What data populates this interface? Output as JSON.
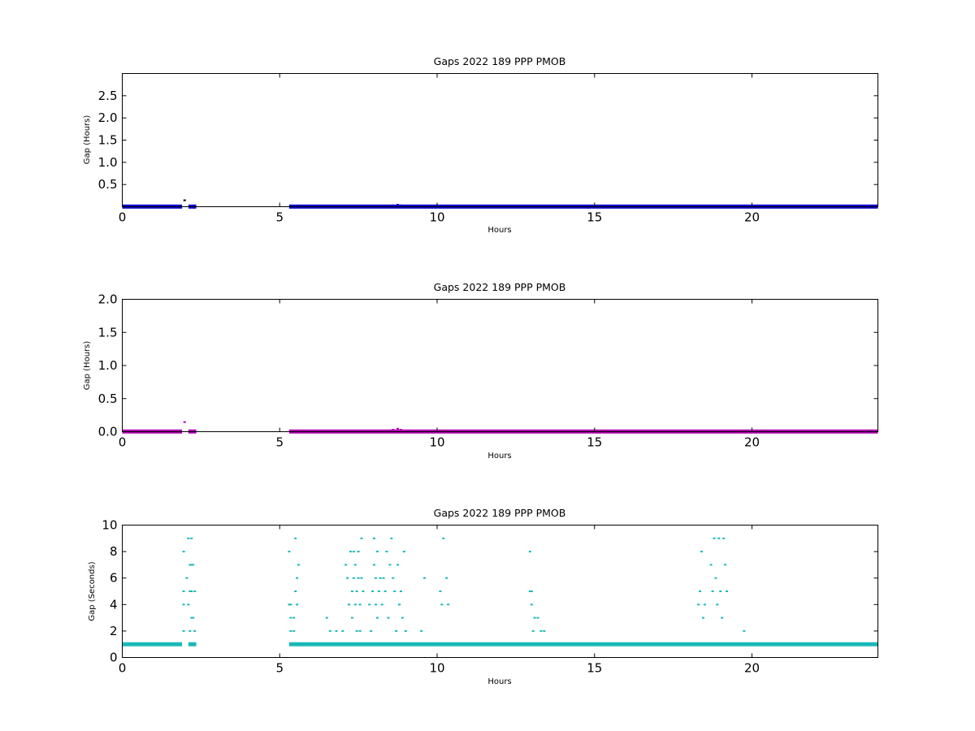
{
  "chart_data": [
    {
      "type": "scatter",
      "title": "Gaps 2022 189 PPP  PMOB",
      "xlabel": "Hours",
      "ylabel": "Gap (Hours)",
      "xlim": [
        0,
        24
      ],
      "ylim": [
        0,
        3.0
      ],
      "xticks": [
        0,
        5,
        10,
        15,
        20
      ],
      "yticks": [
        0.5,
        1.0,
        1.5,
        2.0,
        2.5
      ],
      "ytick_labels": [
        "0.5",
        "1.0",
        "1.5",
        "2.0",
        "2.5"
      ],
      "grid": false,
      "color": "#0000cc",
      "series": [
        {
          "segments": [
            [
              0.0,
              1.9
            ],
            [
              2.1,
              2.35
            ],
            [
              5.3,
              24.0
            ]
          ],
          "baseline": 0.003,
          "x": [
            1.98,
            8.75,
            8.6,
            8.85,
            9.1,
            10.2
          ],
          "y": [
            0.145,
            0.045,
            0.03,
            0.03,
            0.02,
            0.02
          ]
        }
      ]
    },
    {
      "type": "scatter",
      "title": "Gaps 2022 189 PPP  PMOB",
      "xlabel": "Hours",
      "ylabel": "Gap (Hours)",
      "xlim": [
        0,
        24
      ],
      "ylim": [
        0,
        2.0
      ],
      "xticks": [
        0,
        5,
        10,
        15,
        20
      ],
      "yticks": [
        0.0,
        0.5,
        1.0,
        1.5,
        2.0
      ],
      "ytick_labels": [
        "0.0",
        "0.5",
        "1.0",
        "1.5",
        "2.0"
      ],
      "grid": false,
      "color": "#b000b0",
      "series": [
        {
          "segments": [
            [
              0.0,
              1.9
            ],
            [
              2.1,
              2.35
            ],
            [
              5.3,
              24.0
            ]
          ],
          "baseline": 0.003,
          "x": [
            1.98,
            8.75,
            8.6,
            8.85,
            9.1,
            5.6
          ],
          "y": [
            0.145,
            0.045,
            0.03,
            0.03,
            0.02,
            0.015
          ]
        }
      ]
    },
    {
      "type": "scatter",
      "title": "Gaps 2022 189 PPP  PMOB",
      "xlabel": "Hours",
      "ylabel": "Gap (Seconds)",
      "xlim": [
        0,
        24
      ],
      "ylim": [
        0,
        10
      ],
      "xticks": [
        0,
        5,
        10,
        15,
        20
      ],
      "yticks": [
        0,
        2,
        4,
        6,
        8,
        10
      ],
      "ytick_labels": [
        "0",
        "2",
        "4",
        "6",
        "8",
        "10"
      ],
      "grid": false,
      "color": "#1ab8b8",
      "series": [
        {
          "segments": [
            [
              0.0,
              1.9
            ],
            [
              2.1,
              2.35
            ],
            [
              5.3,
              24.0
            ]
          ],
          "baseline": 1,
          "x": [
            1.95,
            1.95,
            1.95,
            1.95,
            2.05,
            2.1,
            2.1,
            2.15,
            2.15,
            2.15,
            2.2,
            2.2,
            2.2,
            2.2,
            2.25,
            2.25,
            2.3,
            2.3,
            5.3,
            5.3,
            5.35,
            5.35,
            5.35,
            5.45,
            5.45,
            5.5,
            5.5,
            5.55,
            5.55,
            5.6,
            6.5,
            6.6,
            6.8,
            7.0,
            7.1,
            7.15,
            7.2,
            7.25,
            7.3,
            7.3,
            7.35,
            7.35,
            7.4,
            7.4,
            7.45,
            7.45,
            7.5,
            7.5,
            7.55,
            7.55,
            7.6,
            7.6,
            7.65,
            7.85,
            7.9,
            7.95,
            8.0,
            8.0,
            8.05,
            8.05,
            8.1,
            8.1,
            8.15,
            8.2,
            8.25,
            8.3,
            8.35,
            8.4,
            8.45,
            8.5,
            8.55,
            8.6,
            8.65,
            8.7,
            8.75,
            8.8,
            8.85,
            8.9,
            8.95,
            9.0,
            9.5,
            9.6,
            10.1,
            10.15,
            10.2,
            10.3,
            10.35,
            12.95,
            12.95,
            13.0,
            13.0,
            13.05,
            13.1,
            13.2,
            13.3,
            13.4,
            18.3,
            18.35,
            18.4,
            18.45,
            18.5,
            18.7,
            18.75,
            18.8,
            18.85,
            18.9,
            18.95,
            19.0,
            19.05,
            19.1,
            19.15,
            19.2,
            19.75
          ],
          "y": [
            8,
            5,
            4,
            2,
            6,
            9,
            4,
            7,
            5,
            2,
            9,
            7,
            5,
            3,
            7,
            3,
            5,
            2,
            8,
            4,
            4,
            3,
            2,
            2,
            3,
            5,
            9,
            6,
            4,
            7,
            3,
            2,
            2,
            2,
            7,
            6,
            4,
            8,
            5,
            3,
            8,
            6,
            7,
            4,
            5,
            2,
            8,
            6,
            4,
            2,
            9,
            6,
            5,
            4,
            2,
            5,
            9,
            7,
            6,
            4,
            8,
            3,
            5,
            6,
            4,
            6,
            5,
            8,
            3,
            7,
            9,
            6,
            5,
            2,
            7,
            4,
            5,
            3,
            8,
            2,
            2,
            6,
            5,
            4,
            9,
            6,
            4,
            8,
            5,
            5,
            4,
            2,
            3,
            3,
            2,
            2,
            4,
            5,
            8,
            3,
            4,
            7,
            5,
            9,
            6,
            4,
            9,
            5,
            3,
            9,
            7,
            5,
            2
          ]
        }
      ]
    }
  ]
}
